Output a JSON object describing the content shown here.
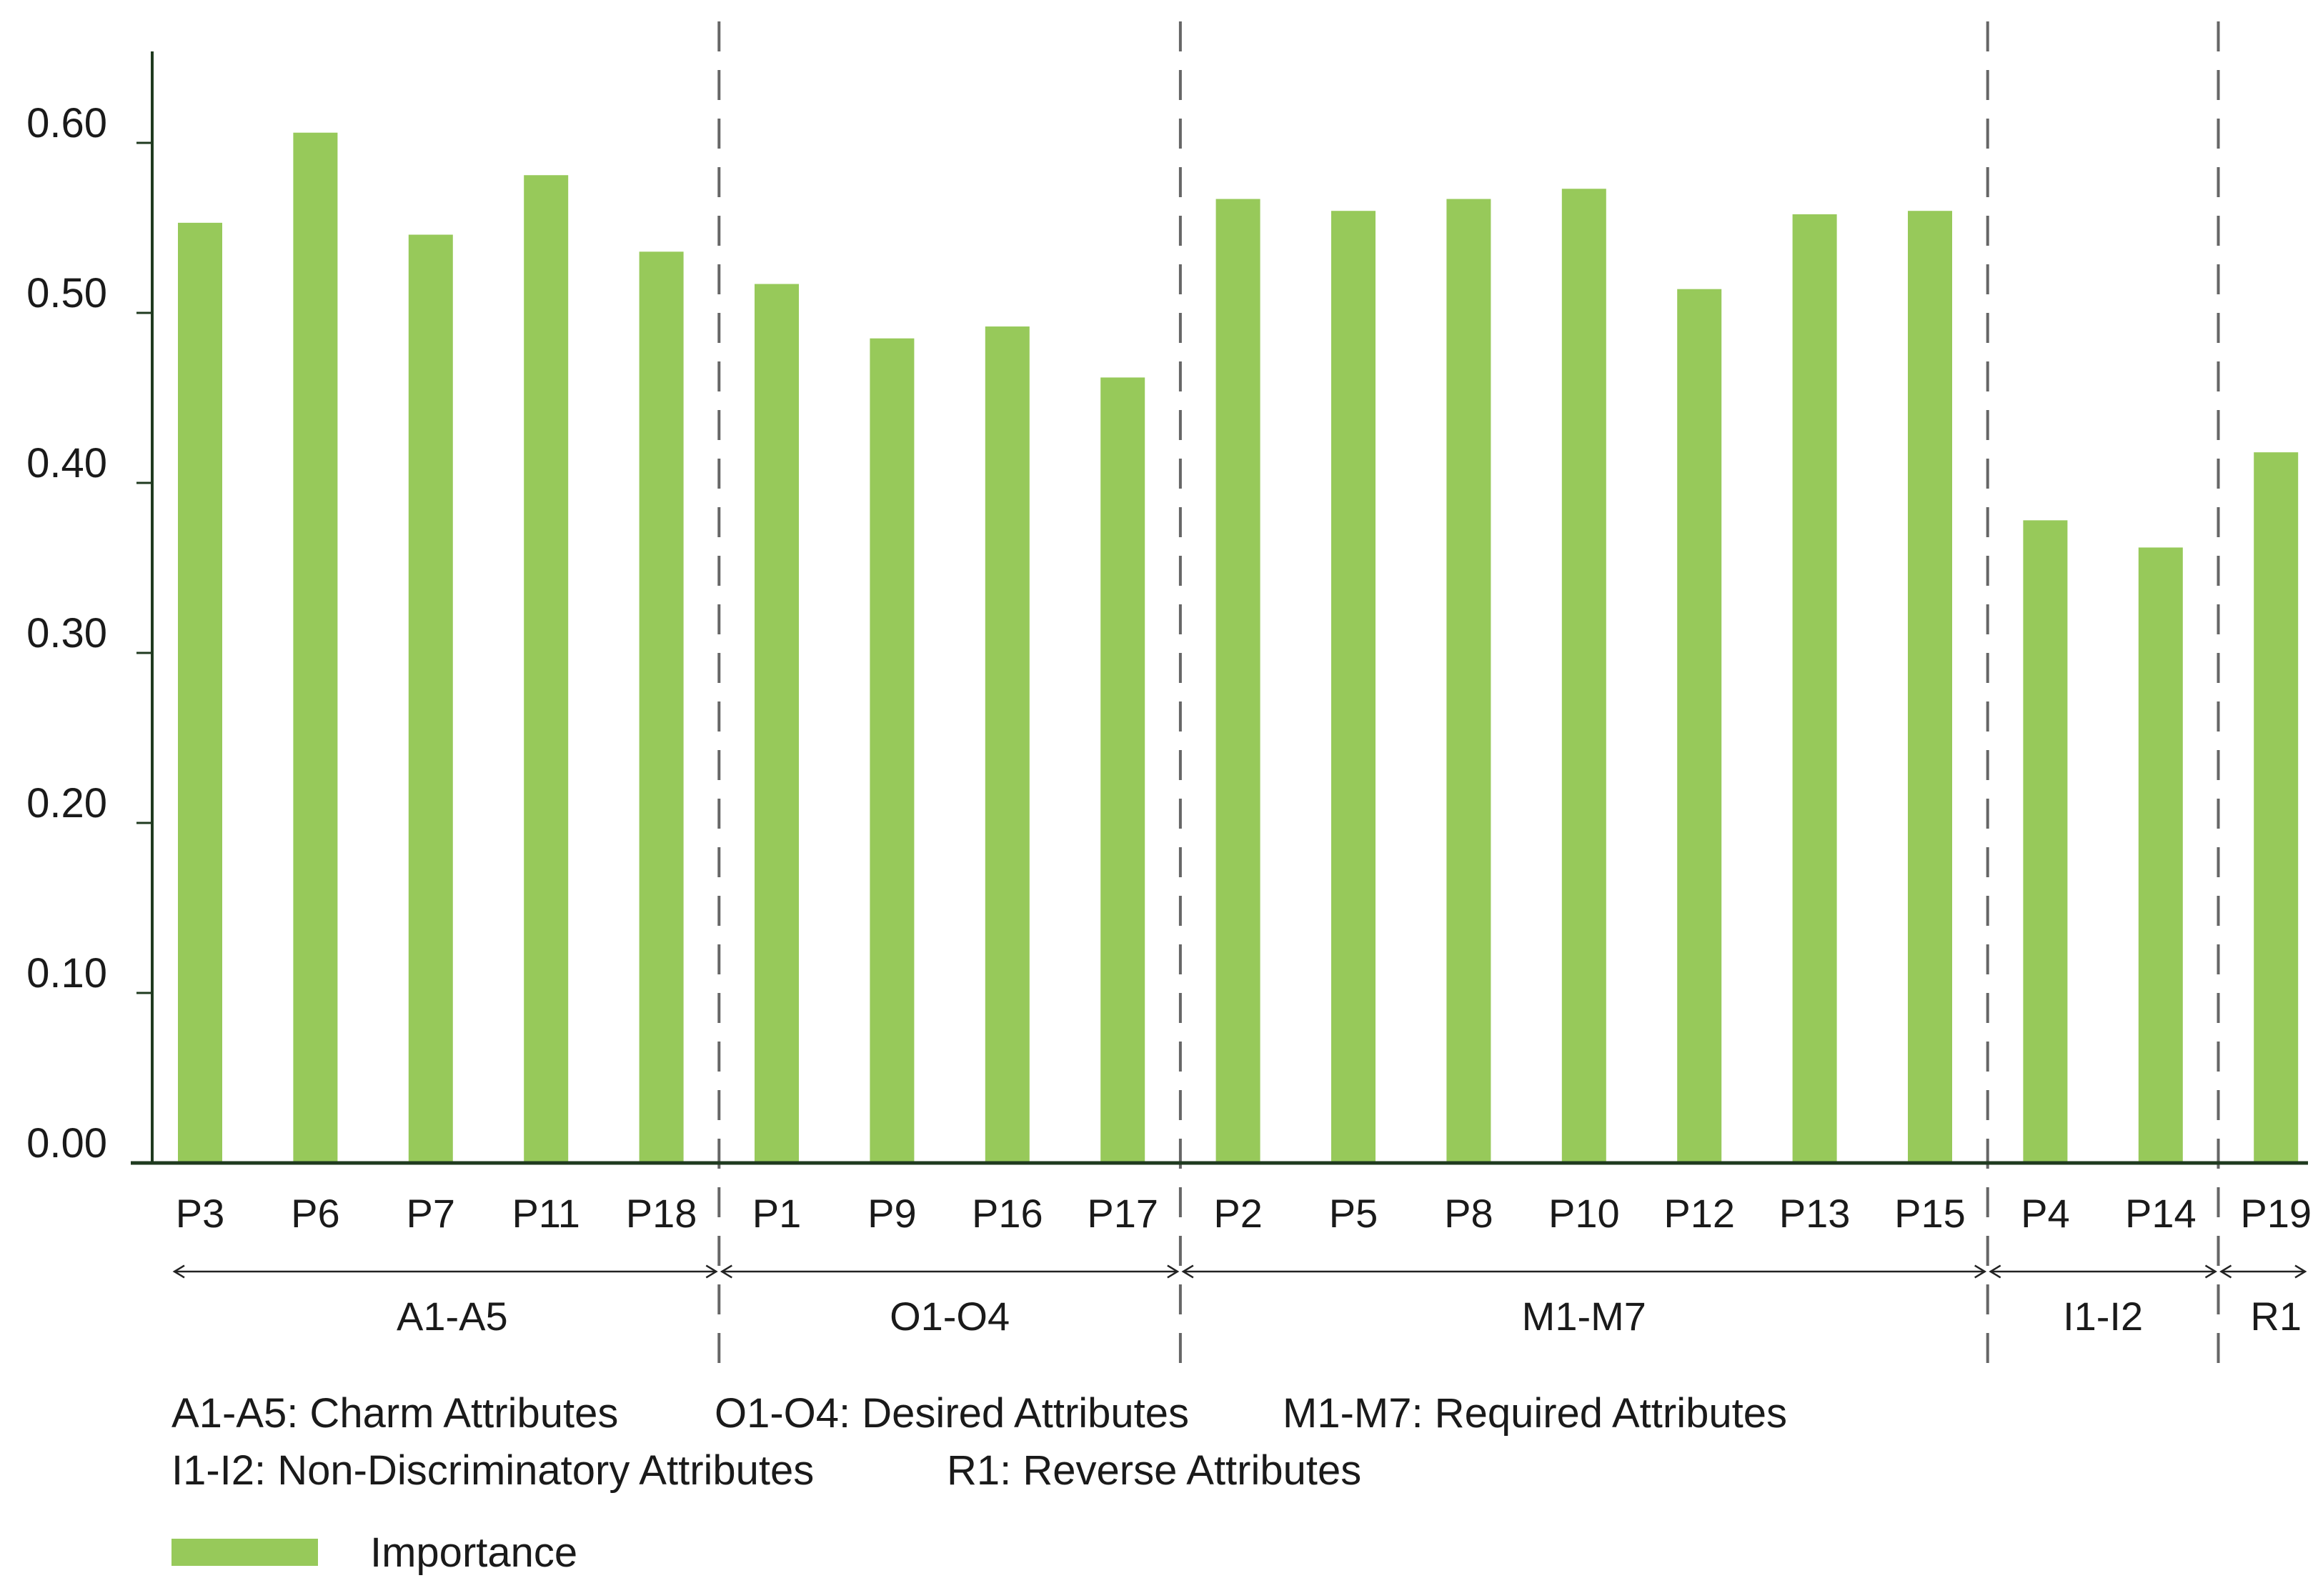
{
  "chart_data": {
    "type": "bar",
    "title": "",
    "xlabel": "",
    "ylabel": "",
    "ylim": [
      0,
      0.65
    ],
    "yticks": [
      "0.00",
      "0.10",
      "0.20",
      "0.30",
      "0.40",
      "0.50",
      "0.60"
    ],
    "categories": [
      "P3",
      "P6",
      "P7",
      "P11",
      "P18",
      "P1",
      "P9",
      "P16",
      "P17",
      "P2",
      "P5",
      "P8",
      "P10",
      "P12",
      "P13",
      "P15",
      "P4",
      "P14",
      "P19"
    ],
    "series": [
      {
        "name": "Importance",
        "color": "#97c95a",
        "values": [
          0.553,
          0.606,
          0.546,
          0.581,
          0.536,
          0.517,
          0.485,
          0.492,
          0.462,
          0.567,
          0.56,
          0.567,
          0.573,
          0.514,
          0.558,
          0.56,
          0.378,
          0.362,
          0.418
        ]
      }
    ],
    "groups": [
      {
        "label": "A1-A5",
        "count": 5
      },
      {
        "label": "O1-O4",
        "count": 4
      },
      {
        "label": "M1-M7",
        "count": 7
      },
      {
        "label": "I1-I2",
        "count": 2
      },
      {
        "label": "R1",
        "count": 1
      }
    ],
    "notes": [
      [
        "A1-A5: Charm Attributes",
        "O1-O4: Desired Attributes",
        "M1-M7: Required Attributes"
      ],
      [
        "I1-I2: Non-Discriminatory Attributes",
        "R1: Reverse Attributes"
      ]
    ],
    "legend": {
      "position": "bottom-left",
      "label": "Importance"
    }
  }
}
